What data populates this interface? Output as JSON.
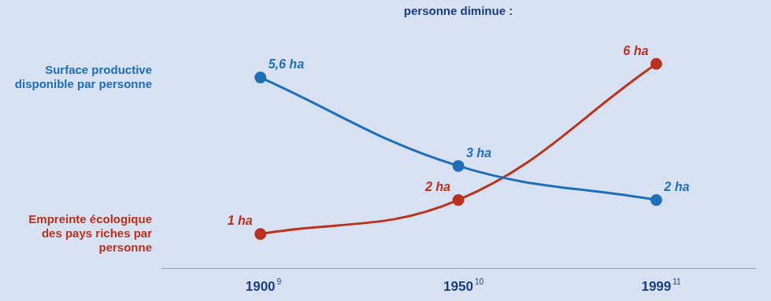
{
  "chart_data": {
    "type": "line",
    "title": "personne diminue :",
    "categories": [
      "1900",
      "1950",
      "1999"
    ],
    "category_notes": [
      "9",
      "10",
      "11"
    ],
    "series": [
      {
        "name": "Surface productive disponible par personne",
        "color": "#1f6fb8",
        "values": [
          5.6,
          3,
          2
        ],
        "value_labels": [
          "5,6 ha",
          "3 ha",
          "2 ha"
        ],
        "marker": "circle"
      },
      {
        "name": "Empreinte écologique des pays riches par personne",
        "color": "#b8321e",
        "values": [
          1,
          2,
          6
        ],
        "value_labels": [
          "1 ha",
          "2 ha",
          "6 ha"
        ],
        "marker": "circle"
      }
    ],
    "data_labels": true,
    "tick_labels": "x",
    "grid": false
  }
}
